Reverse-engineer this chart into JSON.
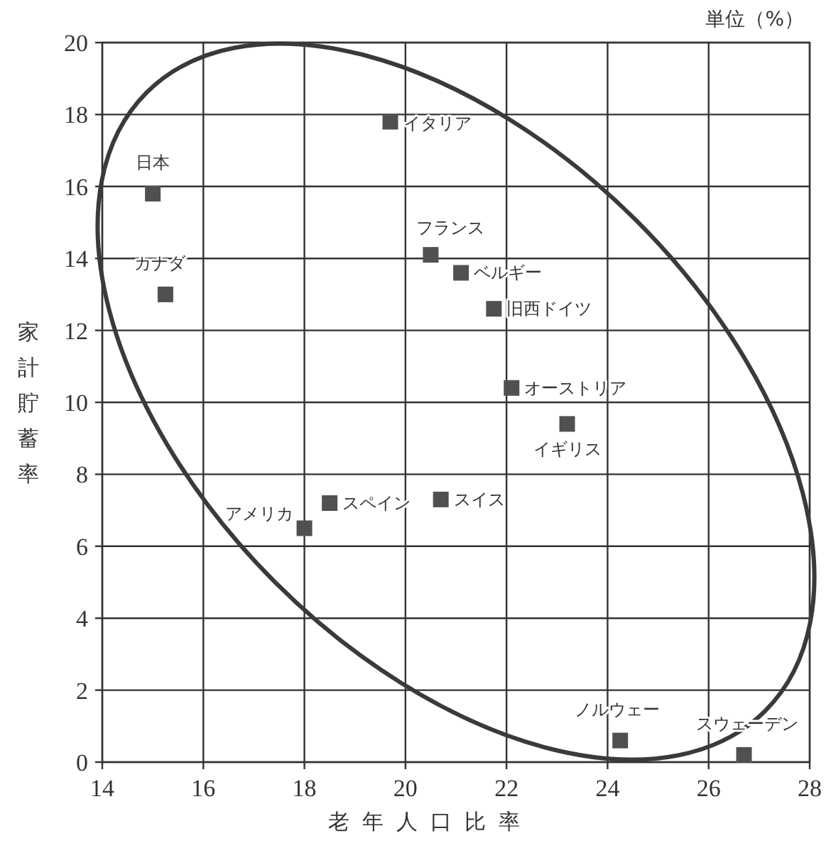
{
  "chart_data": {
    "type": "scatter",
    "xlabel": "老年人口比率",
    "ylabel": "家計貯蓄率",
    "color": "#505050",
    "marker": "square",
    "grid": true,
    "x": [
      15.0,
      15.25,
      19.7,
      20.5,
      21.1,
      21.75,
      22.1,
      23.2,
      20.7,
      18.5,
      18.0,
      24.25,
      26.7
    ],
    "values": [
      15.8,
      13.0,
      17.8,
      14.1,
      13.6,
      12.6,
      10.4,
      9.4,
      7.3,
      7.2,
      6.5,
      0.6,
      0.2
    ],
    "xlim": [
      14,
      28
    ],
    "xticks": [
      14,
      16,
      18,
      20,
      22,
      24,
      26,
      28
    ],
    "ylim": [
      0,
      20
    ],
    "yticks": [
      0,
      2,
      4,
      6,
      8,
      10,
      12,
      14,
      16,
      18,
      20
    ],
    "annotations": [
      "単位（%）",
      {
        "text": "日本",
        "x": 15.0,
        "y": 15.8
      },
      {
        "text": "カナダ",
        "x": 15.25,
        "y": 13.0
      },
      {
        "text": "イタリア",
        "x": 19.7,
        "y": 17.8
      },
      {
        "text": "フランス",
        "x": 20.5,
        "y": 14.1
      },
      {
        "text": "ベルギー",
        "x": 21.1,
        "y": 13.6
      },
      {
        "text": "旧西ドイツ",
        "x": 21.75,
        "y": 12.6
      },
      {
        "text": "オーストリア",
        "x": 22.1,
        "y": 10.4
      },
      {
        "text": "イギリス",
        "x": 23.2,
        "y": 9.4
      },
      {
        "text": "スイス",
        "x": 20.7,
        "y": 7.3
      },
      {
        "text": "スペイン",
        "x": 18.5,
        "y": 7.2
      },
      {
        "text": "アメリカ",
        "x": 18.0,
        "y": 6.5
      },
      {
        "text": "ノルウェー",
        "x": 24.25,
        "y": 0.6
      },
      {
        "text": "スウェーデン",
        "x": 26.7,
        "y": 0.2
      }
    ]
  }
}
